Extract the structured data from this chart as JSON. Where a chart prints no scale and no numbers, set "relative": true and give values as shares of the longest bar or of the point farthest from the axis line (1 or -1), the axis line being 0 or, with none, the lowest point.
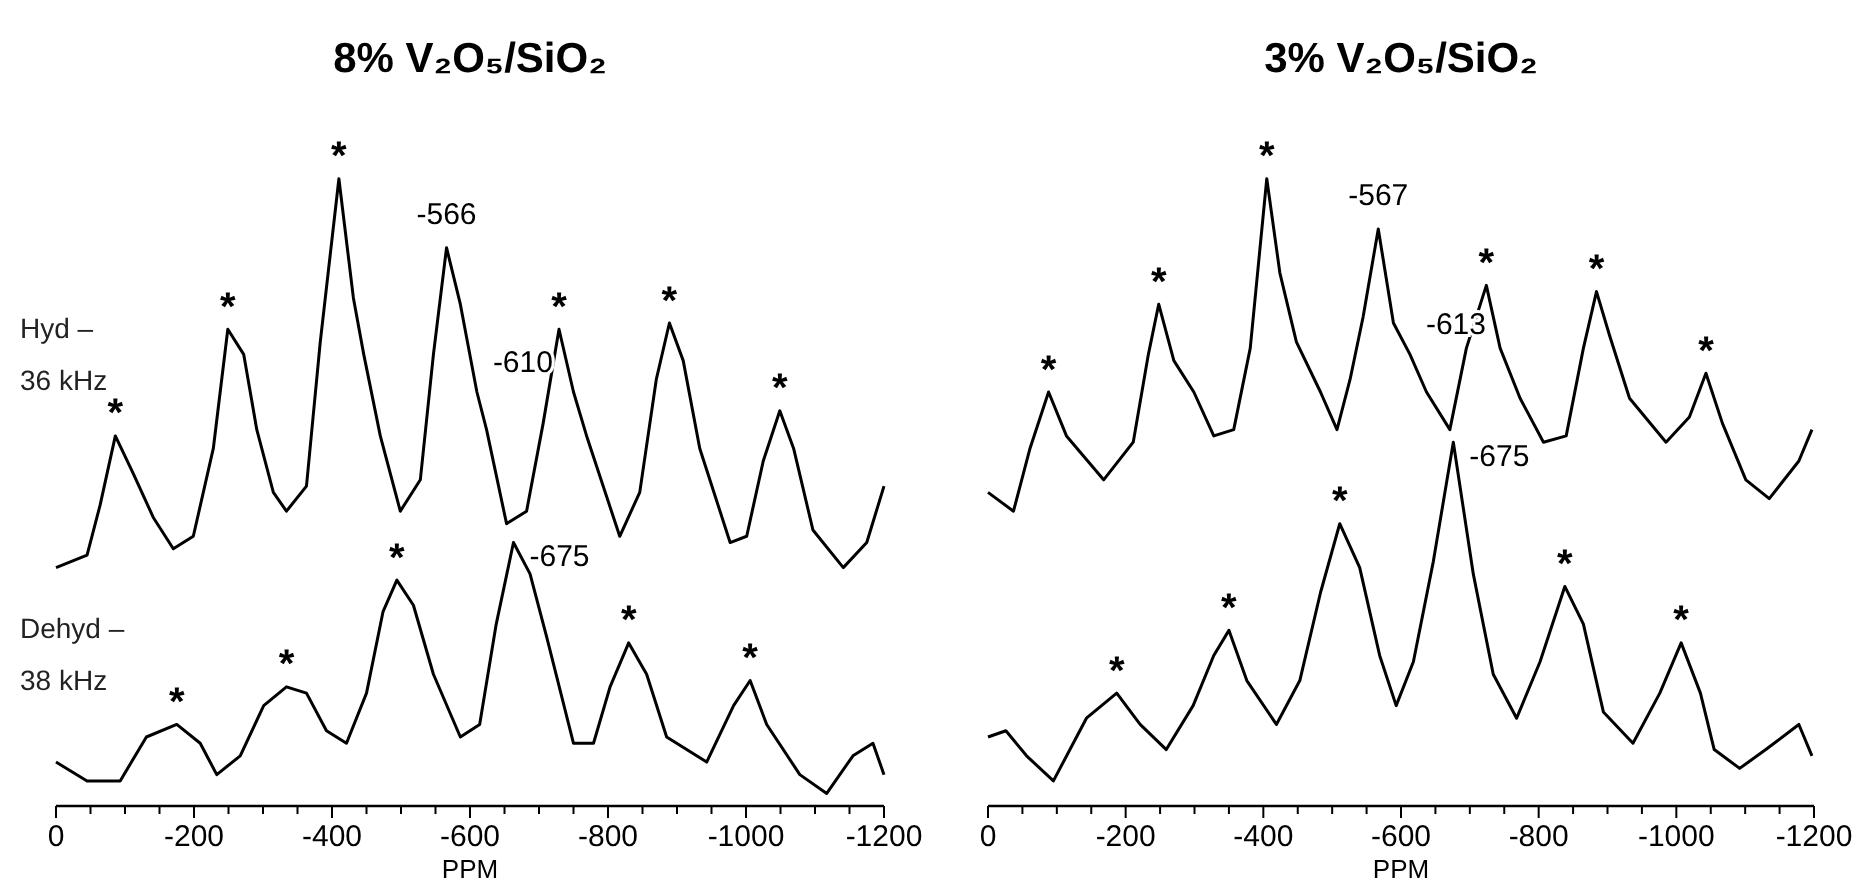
{
  "chart_data": [
    {
      "type": "line",
      "title": "8% V₂O₅/SiO₂",
      "xlabel": "PPM",
      "relative": true,
      "grid": false,
      "marker": "none",
      "line_style": "solid",
      "xlim": [
        0,
        -1200
      ],
      "xticks": [
        0,
        {
          "value": -50,
          "label": null
        },
        -200,
        {
          "value": -100,
          "label": null
        },
        {
          "value": -150,
          "label": null
        },
        {
          "value": -250,
          "label": null
        },
        {
          "value": -300,
          "label": null
        },
        {
          "value": -350,
          "label": null
        },
        -400,
        {
          "value": -450,
          "label": null
        },
        {
          "value": -500,
          "label": null
        },
        {
          "value": -550,
          "label": null
        },
        -600,
        {
          "value": -650,
          "label": null
        },
        {
          "value": -700,
          "label": null
        },
        {
          "value": -750,
          "label": null
        },
        -800,
        {
          "value": -850,
          "label": null
        },
        {
          "value": -900,
          "label": null
        },
        {
          "value": -950,
          "label": null
        },
        -1000,
        {
          "value": -1050,
          "label": null
        },
        {
          "value": -1100,
          "label": null
        },
        {
          "value": -1150,
          "label": null
        },
        -1200
      ],
      "series": [
        {
          "name": "Hyd – 36 kHz",
          "color": "#000000",
          "x": [
            0,
            -45,
            -64,
            -86,
            -112,
            -141,
            -170,
            -199,
            -228,
            -249,
            -272,
            -291,
            -315,
            -334,
            -363,
            -383,
            -410,
            -431,
            -446,
            -470,
            -499,
            -528,
            -547,
            -566,
            -586,
            -610,
            -624,
            -653,
            -682,
            -706,
            -729,
            -750,
            -769,
            -817,
            -846,
            -870,
            -889,
            -909,
            -933,
            -977,
            -1001,
            -1025,
            -1049,
            -1069,
            -1097,
            -1141,
            -1175,
            -1200
          ],
          "values": [
            0.38,
            0.4,
            0.48,
            0.59,
            0.53,
            0.46,
            0.41,
            0.43,
            0.57,
            0.76,
            0.72,
            0.6,
            0.5,
            0.47,
            0.51,
            0.74,
            1.0,
            0.81,
            0.72,
            0.59,
            0.47,
            0.52,
            0.72,
            0.89,
            0.8,
            0.66,
            0.6,
            0.45,
            0.47,
            0.61,
            0.76,
            0.66,
            0.59,
            0.43,
            0.5,
            0.68,
            0.77,
            0.71,
            0.57,
            0.42,
            0.43,
            0.55,
            0.63,
            0.57,
            0.44,
            0.38,
            0.42,
            0.51
          ]
        },
        {
          "name": "Dehyd – 38 kHz",
          "color": "#000000",
          "x": [
            0,
            -45,
            -93,
            -131,
            -175,
            -209,
            -233,
            -267,
            -301,
            -334,
            -363,
            -392,
            -421,
            -450,
            -474,
            -494,
            -518,
            -547,
            -586,
            -614,
            -638,
            -663,
            -687,
            -711,
            -750,
            -779,
            -803,
            -830,
            -856,
            -885,
            -943,
            -982,
            -1006,
            -1030,
            -1078,
            -1117,
            -1155,
            -1184,
            -1200
          ],
          "values": [
            0.07,
            0.04,
            0.04,
            0.11,
            0.13,
            0.1,
            0.05,
            0.08,
            0.16,
            0.19,
            0.18,
            0.12,
            0.1,
            0.18,
            0.31,
            0.36,
            0.32,
            0.21,
            0.11,
            0.13,
            0.29,
            0.42,
            0.37,
            0.27,
            0.1,
            0.1,
            0.19,
            0.26,
            0.21,
            0.11,
            0.07,
            0.16,
            0.2,
            0.13,
            0.05,
            0.02,
            0.08,
            0.1,
            0.05
          ]
        }
      ],
      "annotations": [
        {
          "text": "*",
          "x": -86,
          "y": 0.59
        },
        {
          "text": "*",
          "x": -249,
          "y": 0.76
        },
        {
          "text": "*",
          "x": -410,
          "y": 1.0
        },
        {
          "text": "-566",
          "x": -566,
          "y": 0.89
        },
        {
          "text": "-610",
          "x": -610,
          "y": 0.66
        },
        {
          "text": "*",
          "x": -729,
          "y": 0.76
        },
        {
          "text": "*",
          "x": -889,
          "y": 0.77
        },
        {
          "text": "*",
          "x": -1049,
          "y": 0.63
        },
        {
          "text": "*",
          "x": -175,
          "y": 0.13
        },
        {
          "text": "*",
          "x": -334,
          "y": 0.19
        },
        {
          "text": "*",
          "x": -494,
          "y": 0.36
        },
        {
          "text": "-675",
          "x": -663,
          "y": 0.42
        },
        {
          "text": "*",
          "x": -830,
          "y": 0.26
        },
        {
          "text": "*",
          "x": -1006,
          "y": 0.2
        }
      ]
    },
    {
      "type": "line",
      "title": "3% V₂O₅/SiO₂",
      "xlabel": "PPM",
      "relative": true,
      "grid": false,
      "marker": "none",
      "line_style": "solid",
      "xlim": [
        0,
        -1200
      ],
      "xticks": [
        0,
        {
          "value": -50,
          "label": null
        },
        -200,
        {
          "value": -100,
          "label": null
        },
        {
          "value": -150,
          "label": null
        },
        {
          "value": -250,
          "label": null
        },
        {
          "value": -300,
          "label": null
        },
        {
          "value": -350,
          "label": null
        },
        -400,
        {
          "value": -450,
          "label": null
        },
        {
          "value": -500,
          "label": null
        },
        {
          "value": -550,
          "label": null
        },
        -600,
        {
          "value": -650,
          "label": null
        },
        {
          "value": -700,
          "label": null
        },
        {
          "value": -750,
          "label": null
        },
        -800,
        {
          "value": -850,
          "label": null
        },
        {
          "value": -900,
          "label": null
        },
        {
          "value": -950,
          "label": null
        },
        -1000,
        {
          "value": -1050,
          "label": null
        },
        {
          "value": -1100,
          "label": null
        },
        {
          "value": -1150,
          "label": null
        },
        -1200
      ],
      "series": [
        {
          "color": "#000000",
          "x": [
            0,
            -37,
            -61,
            -88,
            -114,
            -168,
            -211,
            -233,
            -248,
            -270,
            -299,
            -328,
            -357,
            -381,
            -405,
            -424,
            -448,
            -483,
            -507,
            -526,
            -545,
            -567,
            -589,
            -613,
            -637,
            -671,
            -695,
            -724,
            -744,
            -773,
            -807,
            -840,
            -865,
            -884,
            -903,
            -932,
            -985,
            -1019,
            -1043,
            -1067,
            -1101,
            -1135,
            -1178,
            -1197
          ],
          "values": [
            0.5,
            0.47,
            0.57,
            0.66,
            0.59,
            0.52,
            0.58,
            0.72,
            0.8,
            0.71,
            0.66,
            0.59,
            0.6,
            0.73,
            1.0,
            0.85,
            0.74,
            0.66,
            0.6,
            0.68,
            0.78,
            0.92,
            0.77,
            0.72,
            0.66,
            0.6,
            0.73,
            0.83,
            0.73,
            0.65,
            0.58,
            0.59,
            0.73,
            0.82,
            0.75,
            0.65,
            0.58,
            0.62,
            0.69,
            0.61,
            0.52,
            0.49,
            0.55,
            0.6
          ]
        },
        {
          "color": "#000000",
          "x": [
            0,
            -26,
            -56,
            -95,
            -143,
            -187,
            -221,
            -259,
            -298,
            -328,
            -350,
            -376,
            -419,
            -453,
            -483,
            -511,
            -540,
            -569,
            -593,
            -618,
            -647,
            -676,
            -705,
            -734,
            -768,
            -802,
            -838,
            -865,
            -894,
            -937,
            -976,
            -1007,
            -1035,
            -1055,
            -1092,
            -1130,
            -1178,
            -1197
          ],
          "values": [
            0.11,
            0.12,
            0.08,
            0.04,
            0.14,
            0.18,
            0.13,
            0.09,
            0.16,
            0.24,
            0.28,
            0.2,
            0.13,
            0.2,
            0.34,
            0.45,
            0.38,
            0.24,
            0.16,
            0.23,
            0.39,
            0.58,
            0.37,
            0.21,
            0.14,
            0.23,
            0.35,
            0.29,
            0.15,
            0.1,
            0.18,
            0.26,
            0.18,
            0.09,
            0.06,
            0.09,
            0.13,
            0.08
          ]
        }
      ],
      "annotations": [
        {
          "text": "*",
          "x": -88,
          "y": 0.66
        },
        {
          "text": "*",
          "x": -248,
          "y": 0.8
        },
        {
          "text": "*",
          "x": -405,
          "y": 1.0
        },
        {
          "text": "-567",
          "x": -567,
          "y": 0.92
        },
        {
          "text": "-613",
          "x": -613,
          "y": 0.72
        },
        {
          "text": "*",
          "x": -724,
          "y": 0.83
        },
        {
          "text": "*",
          "x": -884,
          "y": 0.82
        },
        {
          "text": "*",
          "x": -1043,
          "y": 0.69
        },
        {
          "text": "*",
          "x": -187,
          "y": 0.18
        },
        {
          "text": "*",
          "x": -350,
          "y": 0.28
        },
        {
          "text": "*",
          "x": -511,
          "y": 0.45
        },
        {
          "text": "-675",
          "x": -676,
          "y": 0.58
        },
        {
          "text": "*",
          "x": -838,
          "y": 0.35
        },
        {
          "text": "*",
          "x": -1007,
          "y": 0.26
        }
      ]
    }
  ]
}
